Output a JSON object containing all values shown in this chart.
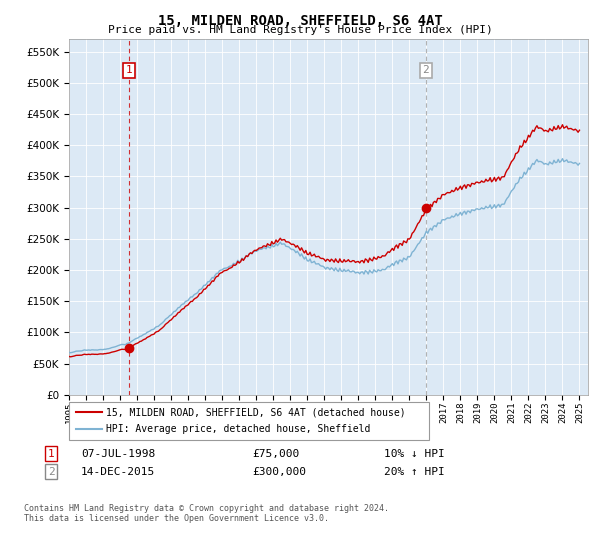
{
  "title": "15, MILDEN ROAD, SHEFFIELD, S6 4AT",
  "subtitle": "Price paid vs. HM Land Registry's House Price Index (HPI)",
  "sale1_year": 1998.52,
  "sale1_price": 75000,
  "sale2_year": 2015.96,
  "sale2_price": 300000,
  "hpi_color": "#7fb3d3",
  "price_color": "#cc0000",
  "sale1_vline_color": "#cc0000",
  "sale2_vline_color": "#aaaaaa",
  "bg_color": "#dce9f5",
  "legend_label1": "15, MILDEN ROAD, SHEFFIELD, S6 4AT (detached house)",
  "legend_label2": "HPI: Average price, detached house, Sheffield",
  "footnote1": "Contains HM Land Registry data © Crown copyright and database right 2024.",
  "footnote2": "This data is licensed under the Open Government Licence v3.0.",
  "table_row1_num": "1",
  "table_row1_date": "07-JUL-1998",
  "table_row1_price": "£75,000",
  "table_row1_pct": "10% ↓ HPI",
  "table_row2_num": "2",
  "table_row2_date": "14-DEC-2015",
  "table_row2_price": "£300,000",
  "table_row2_pct": "20% ↑ HPI"
}
